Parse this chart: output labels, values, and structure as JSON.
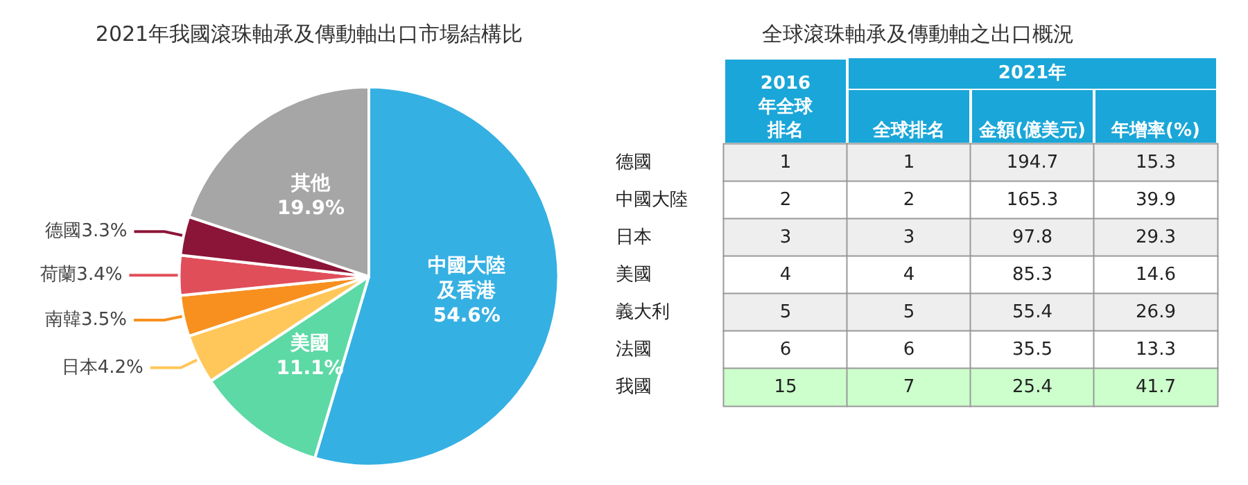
{
  "chart_data": [
    {
      "type": "pie",
      "title": "2021年我國滾珠軸承及傳動軸出口市場結構比",
      "categories": [
        "中國大陸及香港",
        "美國",
        "日本",
        "南韓",
        "荷蘭",
        "德國",
        "其他"
      ],
      "values": [
        54.6,
        11.1,
        4.2,
        3.5,
        3.4,
        3.3,
        19.9
      ],
      "value_labels": [
        "54.6%",
        "11.1%",
        "4.2%",
        "3.5%",
        "3.4%",
        "3.3%",
        "19.9%"
      ],
      "colors": [
        "#35b0e3",
        "#5dd9a6",
        "#ffc75a",
        "#f7901e",
        "#e04e5a",
        "#8b1538",
        "#a6a6a6"
      ]
    },
    {
      "type": "heatmap",
      "title": "全球滾珠軸承及傳動軸之出口概況",
      "xlabel": "2021年",
      "categories": [
        "2016年全球排名",
        "全球排名",
        "金額(億美元)",
        "年增率(%)"
      ],
      "y_categories": [
        "德國",
        "中國大陸",
        "日本",
        "美國",
        "義大利",
        "法國",
        "我國"
      ],
      "data_labels": true,
      "cells": [
        [
          1,
          1,
          194.7,
          15.3
        ],
        [
          2,
          2,
          165.3,
          39.9
        ],
        [
          3,
          3,
          97.8,
          29.3
        ],
        [
          4,
          4,
          85.3,
          14.6
        ],
        [
          5,
          5,
          55.4,
          26.9
        ],
        [
          6,
          6,
          35.5,
          13.3
        ],
        [
          15,
          7,
          25.4,
          41.7
        ]
      ]
    }
  ]
}
